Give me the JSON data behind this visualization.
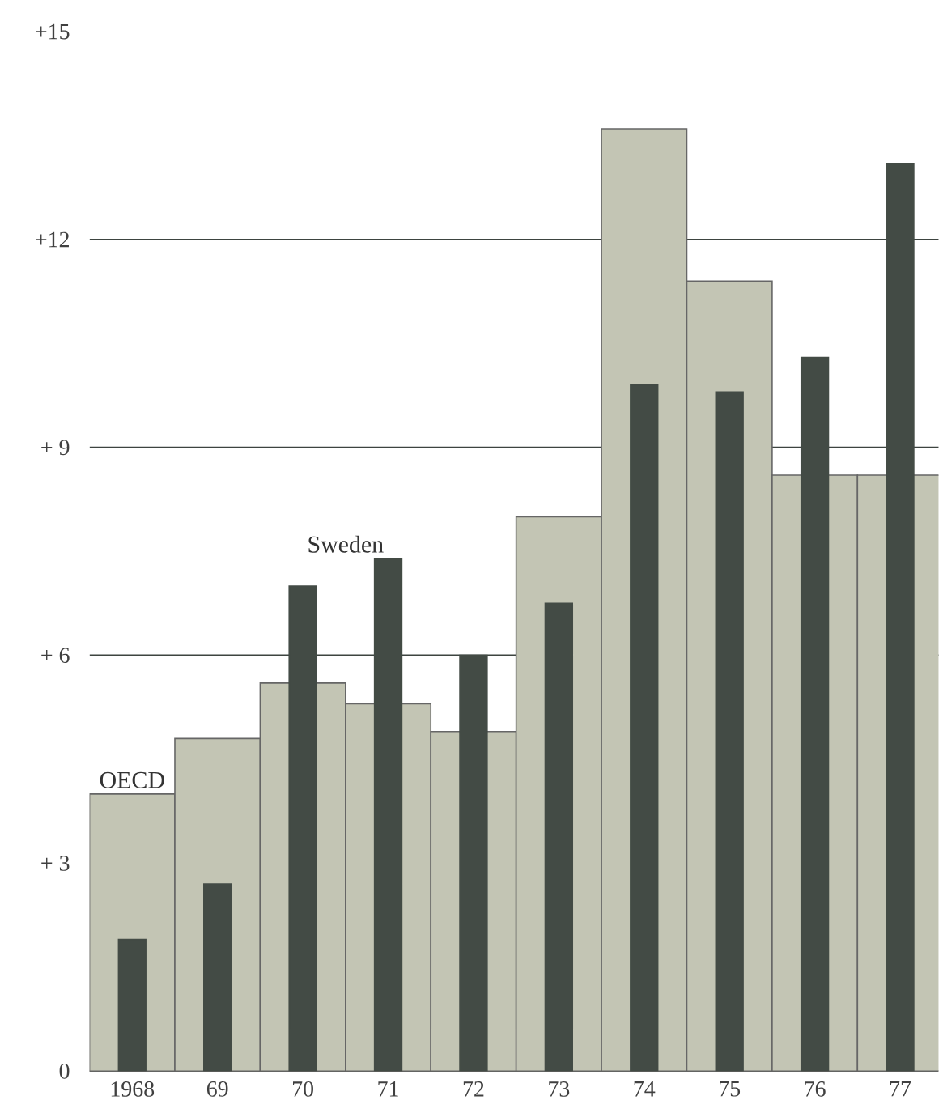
{
  "chart_data": {
    "type": "bar",
    "categories": [
      "1968",
      "69",
      "70",
      "71",
      "72",
      "73",
      "74",
      "75",
      "76",
      "77"
    ],
    "series": [
      {
        "name": "OECD",
        "color": "#c3c5b4",
        "values": [
          4.0,
          4.8,
          5.6,
          5.3,
          4.9,
          8.0,
          13.6,
          11.4,
          8.6,
          8.6
        ]
      },
      {
        "name": "Sweden",
        "color": "#434b45",
        "values": [
          1.9,
          2.7,
          7.0,
          7.4,
          6.0,
          6.75,
          9.9,
          9.8,
          10.3,
          13.1
        ]
      }
    ],
    "ylim": [
      0,
      15
    ],
    "yticks": [
      0,
      {
        "value": 3,
        "label": "+ 3"
      },
      {
        "value": 6,
        "label": "+ 6"
      },
      {
        "value": 9,
        "label": "+ 9"
      },
      {
        "value": 12,
        "label": "+12"
      },
      {
        "value": 15,
        "label": "+15"
      }
    ],
    "ref_lines": [
      {
        "axis": "y",
        "value": 6,
        "color": "#3d4440"
      },
      {
        "axis": "y",
        "value": 9,
        "color": "#3d4440"
      },
      {
        "axis": "y",
        "value": 12,
        "color": "#3d4440"
      }
    ]
  }
}
